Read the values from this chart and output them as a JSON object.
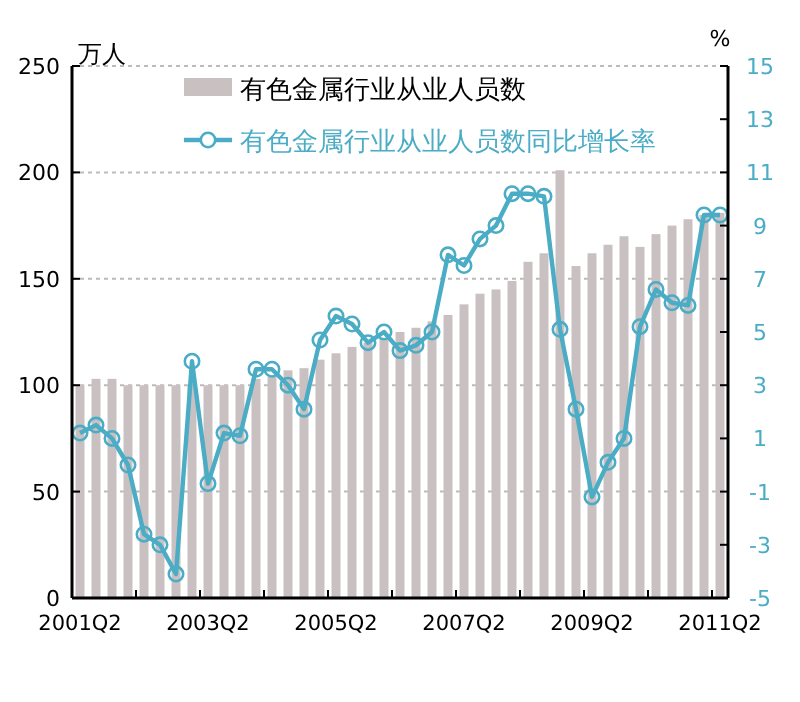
{
  "chart_data": {
    "type": "bar",
    "categories": [
      "2001Q2",
      null,
      null,
      null,
      null,
      null,
      null,
      null,
      "2003Q2",
      null,
      null,
      null,
      null,
      null,
      null,
      null,
      "2005Q2",
      null,
      null,
      null,
      null,
      null,
      null,
      null,
      "2007Q2",
      null,
      null,
      null,
      null,
      null,
      null,
      null,
      "2009Q2",
      null,
      null,
      null,
      null,
      null,
      null,
      null,
      "2011Q2"
    ],
    "series": [
      {
        "name": "有色金属行业从业人员数",
        "color": "#c9c1c1",
        "values": [
          100,
          103,
          103,
          100,
          100,
          100,
          100,
          100,
          100,
          100,
          100,
          103,
          104,
          107,
          108,
          112,
          115,
          118,
          120,
          122,
          125,
          127,
          130,
          133,
          138,
          143,
          145,
          149,
          158,
          162,
          201,
          156,
          162,
          166,
          170,
          165,
          171,
          175,
          178,
          180,
          181
        ]
      },
      {
        "name": "有色金属行业从业人员数同比增长率",
        "type": "line",
        "axis": "y2",
        "color": "#4bacc6",
        "marker": "circle",
        "values": [
          1.2,
          1.5,
          1.0,
          0.0,
          -2.6,
          -3.0,
          -4.1,
          3.9,
          -0.7,
          1.2,
          1.1,
          3.6,
          3.6,
          3.0,
          2.1,
          4.7,
          5.6,
          5.3,
          4.6,
          5.0,
          4.3,
          4.5,
          5.0,
          7.9,
          7.5,
          8.5,
          9.0,
          10.2,
          10.2,
          10.1,
          5.1,
          2.1,
          -1.2,
          0.1,
          1.0,
          5.2,
          6.6,
          6.1,
          6.0,
          9.4,
          9.4
        ]
      }
    ],
    "ylabel": "万人",
    "y2label": "%",
    "ylim": [
      0,
      250
    ],
    "yticks": [
      0,
      50,
      100,
      150,
      200,
      250
    ],
    "y2lim": [
      -5,
      15
    ],
    "y2ticks": [
      -5,
      -3,
      -1,
      1,
      3,
      5,
      7,
      9,
      11,
      13,
      15
    ],
    "grid": "y",
    "legend": "top"
  }
}
